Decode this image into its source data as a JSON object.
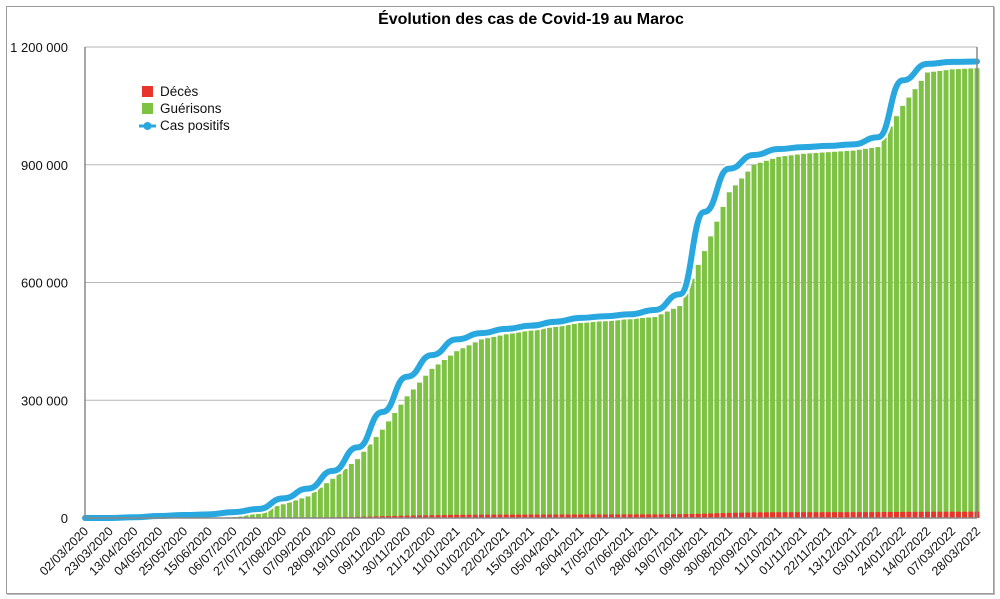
{
  "chart_data": {
    "type": "bar",
    "title": "Évolution des cas de Covid-19 au Maroc",
    "xlabel": "",
    "ylabel": "",
    "ylim": [
      0,
      1200000
    ],
    "yticks": [
      0,
      300000,
      600000,
      900000,
      1200000
    ],
    "ytick_labels": [
      "0",
      "300 000",
      "600 000",
      "900 000",
      "1 200 000"
    ],
    "grid": true,
    "legend_position": "top-left",
    "categories": [
      "02/03/2020",
      "23/03/2020",
      "13/04/2020",
      "04/05/2020",
      "25/05/2020",
      "15/06/2020",
      "06/07/2020",
      "27/07/2020",
      "17/08/2020",
      "07/09/2020",
      "28/09/2020",
      "19/10/2020",
      "09/11/2020",
      "30/11/2020",
      "21/12/2020",
      "11/01/2021",
      "01/02/2021",
      "22/02/2021",
      "15/03/2021",
      "05/04/2021",
      "26/04/2021",
      "17/05/2021",
      "07/06/2021",
      "28/06/2021",
      "19/07/2021",
      "09/08/2021",
      "30/08/2021",
      "20/09/2021",
      "11/10/2021",
      "01/11/2021",
      "22/11/2021",
      "13/12/2021",
      "03/01/2022",
      "24/01/2022",
      "14/02/2022",
      "07/03/2022",
      "28/03/2022"
    ],
    "series": [
      {
        "name": "Décès",
        "kind": "bar",
        "color": "#e8342a",
        "values": [
          0,
          0,
          100,
          200,
          200,
          200,
          250,
          400,
          800,
          1200,
          2000,
          3000,
          4500,
          6000,
          7000,
          8000,
          8400,
          8600,
          8700,
          8800,
          8900,
          9000,
          9100,
          9200,
          9600,
          11000,
          13000,
          14300,
          14700,
          14800,
          14800,
          14900,
          15000,
          15600,
          15800,
          16000,
          16100
        ]
      },
      {
        "name": "Guérisons",
        "kind": "bar",
        "color": "#7dc243",
        "values": [
          0,
          0,
          200,
          2000,
          4500,
          7000,
          11000,
          17000,
          35000,
          55000,
          100000,
          150000,
          225000,
          310000,
          380000,
          425000,
          455000,
          468000,
          478000,
          487000,
          497000,
          503000,
          507000,
          512000,
          540000,
          680000,
          830000,
          900000,
          920000,
          928000,
          932000,
          936000,
          945000,
          1050000,
          1135000,
          1143000,
          1146000
        ]
      },
      {
        "name": "Cas positifs",
        "kind": "line",
        "color": "#29a8e0",
        "values": [
          0,
          150,
          2000,
          5200,
          7600,
          9300,
          15000,
          23000,
          50000,
          75000,
          120000,
          180000,
          270000,
          360000,
          415000,
          455000,
          471000,
          482000,
          490000,
          500000,
          510000,
          514000,
          519000,
          530000,
          570000,
          780000,
          890000,
          925000,
          940000,
          945000,
          948000,
          952000,
          970000,
          1115000,
          1157000,
          1162000,
          1163000
        ]
      }
    ]
  }
}
